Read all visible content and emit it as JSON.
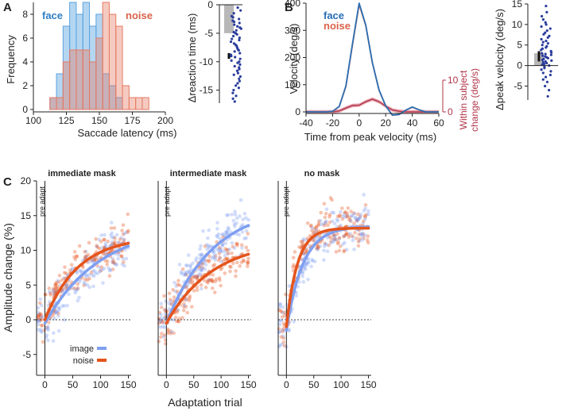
{
  "panel_labels": {
    "A": "A",
    "B": "B",
    "C": "C"
  },
  "chart_data": [
    {
      "id": "histogram",
      "type": "bar",
      "xlabel": "Saccade latency (ms)",
      "ylabel": "Frequency",
      "xlim": [
        100,
        200
      ],
      "ylim": [
        0,
        9
      ],
      "xticks": [
        100,
        125,
        150,
        175,
        200
      ],
      "yticks": [
        0,
        2,
        4,
        6,
        8
      ],
      "bin_width": 5,
      "series": [
        {
          "name": "face",
          "color": "#5aa3e0",
          "bins": [
            {
              "x": 115,
              "v": 1
            },
            {
              "x": 120,
              "v": 3
            },
            {
              "x": 125,
              "v": 7
            },
            {
              "x": 130,
              "v": 9
            },
            {
              "x": 135,
              "v": 8
            },
            {
              "x": 140,
              "v": 9
            },
            {
              "x": 145,
              "v": 7
            },
            {
              "x": 150,
              "v": 8
            },
            {
              "x": 155,
              "v": 3
            },
            {
              "x": 160,
              "v": 2
            },
            {
              "x": 165,
              "v": 1
            }
          ]
        },
        {
          "name": "noise",
          "color": "#e77b63",
          "bins": [
            {
              "x": 115,
              "v": 1
            },
            {
              "x": 120,
              "v": 1
            },
            {
              "x": 125,
              "v": 4
            },
            {
              "x": 130,
              "v": 5
            },
            {
              "x": 135,
              "v": 5
            },
            {
              "x": 140,
              "v": 5
            },
            {
              "x": 145,
              "v": 4
            },
            {
              "x": 150,
              "v": 6
            },
            {
              "x": 155,
              "v": 9
            },
            {
              "x": 160,
              "v": 8
            },
            {
              "x": 165,
              "v": 7
            },
            {
              "x": 170,
              "v": 2
            },
            {
              "x": 175,
              "v": 1
            },
            {
              "x": 180,
              "v": 1
            },
            {
              "x": 185,
              "v": 1
            }
          ]
        }
      ]
    },
    {
      "id": "reaction-time-dots",
      "type": "scatter",
      "ylabel": "Δreaction time (ms)",
      "ylim": [
        -17,
        0
      ],
      "yticks": [
        0,
        -5,
        -10,
        -15
      ],
      "bar_mean": -5,
      "error_bar": [
        -9.5,
        -8.5
      ],
      "values": [
        -0.5,
        -1,
        -1.5,
        -2,
        -2.2,
        -2.5,
        -2.8,
        -3,
        -3.2,
        -3.5,
        -3.8,
        -4,
        -4.2,
        -4.5,
        -4.8,
        -5,
        -5,
        -5.2,
        -5.5,
        -5.8,
        -6,
        -6.2,
        -6.5,
        -6.8,
        -7,
        -7.2,
        -7.5,
        -7.8,
        -8,
        -8.2,
        -8.5,
        -8.8,
        -9,
        -9.2,
        -9.5,
        -9.8,
        -10,
        -10.2,
        -10.5,
        -10.8,
        -11,
        -11.3,
        -11.6,
        -12,
        -12.3,
        -12.6,
        -13,
        -13.4,
        -13.8,
        -14.2,
        -14.6,
        -15,
        -15.5,
        -16,
        -16.5,
        -17
      ]
    },
    {
      "id": "velocity-profile",
      "type": "line",
      "xlabel": "Time from peak velocity (ms)",
      "ylabel": "Velocity (deg/s)",
      "y2label_line1": "Within subject",
      "y2label_line2": "change (deg/s)",
      "xlim": [
        -40,
        60
      ],
      "ylim": [
        0,
        400
      ],
      "y2lim": [
        0,
        10
      ],
      "xticks": [
        -40,
        -20,
        0,
        20,
        40,
        60
      ],
      "yticks": [
        0,
        100,
        200,
        300,
        400
      ],
      "y2ticks": [
        0,
        10
      ],
      "x": [
        -40,
        -35,
        -30,
        -25,
        -20,
        -15,
        -10,
        -5,
        0,
        5,
        10,
        15,
        20,
        25,
        30,
        35,
        40,
        45,
        50,
        55,
        60
      ],
      "series": [
        {
          "name": "face",
          "color": "#2a6eb5",
          "values": [
            0,
            0,
            0,
            0,
            2,
            20,
            95,
            250,
            400,
            320,
            180,
            80,
            22,
            -12,
            -10,
            6,
            18,
            8,
            0,
            0,
            0
          ]
        },
        {
          "name": "noise",
          "color": "#e0714f",
          "values": [
            0,
            0,
            0,
            0,
            2,
            20,
            93,
            246,
            395,
            318,
            180,
            80,
            22,
            -12,
            -10,
            6,
            17,
            8,
            0,
            0,
            0
          ]
        },
        {
          "name": "within subject change",
          "color": "#b0364a",
          "axis": "y2",
          "values": [
            0,
            0,
            0,
            0,
            0,
            0.3,
            1.2,
            2,
            2.1,
            3.2,
            4,
            3.2,
            1.8,
            0.6,
            0.2,
            0,
            0,
            0,
            0,
            0,
            0
          ]
        }
      ]
    },
    {
      "id": "peak-velocity-dots",
      "type": "scatter",
      "ylabel": "Δpeak velocity (deg/s)",
      "ylim": [
        -8,
        15
      ],
      "yticks": [
        -5,
        0,
        5,
        10,
        15
      ],
      "bar_mean": 3,
      "error_bar": [
        1,
        3.5
      ],
      "values": [
        14.5,
        13,
        12,
        11.2,
        10.5,
        10,
        9.5,
        9,
        8.5,
        8,
        7.6,
        7.2,
        6.8,
        6.4,
        6,
        5.7,
        5.4,
        5,
        4.7,
        4.4,
        4.1,
        3.8,
        3.5,
        3.2,
        3,
        2.8,
        2.6,
        2.4,
        2.2,
        2,
        1.8,
        1.6,
        1.4,
        1.2,
        1,
        0.8,
        0.6,
        0.4,
        0.2,
        0,
        -0.3,
        -0.6,
        -1,
        -1.4,
        -1.8,
        -2.3,
        -2.8,
        -3.4,
        -4,
        -5,
        -6,
        -7.5
      ]
    },
    {
      "id": "adaptation-curves",
      "type": "scatter",
      "ylabel": "Amplitude change (%)",
      "xlabel": "Adaptation trial",
      "pre_adapt_label": "pre adapt",
      "xlim": [
        -15,
        155
      ],
      "ylim": [
        -8,
        20
      ],
      "xticks": [
        0,
        50,
        100,
        150
      ],
      "yticks": [
        -5,
        0,
        5,
        10,
        15,
        20
      ],
      "legend": [
        {
          "name": "image",
          "color": "#7f9ff0"
        },
        {
          "name": "noise",
          "color": "#e4541c"
        }
      ],
      "panels": [
        {
          "title": "immediate mask",
          "fits": [
            {
              "name": "image",
              "color": "#7f9ff0",
              "asymptote": 13.8,
              "tau": 100,
              "offset": -0.5
            },
            {
              "name": "noise",
              "color": "#e4541c",
              "asymptote": 12.0,
              "tau": 60,
              "offset": 0
            }
          ]
        },
        {
          "title": "intermediate mask",
          "fits": [
            {
              "name": "image",
              "color": "#7f9ff0",
              "asymptote": 16.5,
              "tau": 85,
              "offset": -0.5
            },
            {
              "name": "noise",
              "color": "#e4541c",
              "asymptote": 11.5,
              "tau": 85,
              "offset": -0.5
            }
          ]
        },
        {
          "title": "no mask",
          "fits": [
            {
              "name": "image",
              "color": "#7f9ff0",
              "asymptote": 13.5,
              "tau": 30,
              "offset": -1.5
            },
            {
              "name": "noise",
              "color": "#e4541c",
              "asymptote": 13.2,
              "tau": 20,
              "offset": -1.0
            }
          ]
        }
      ]
    }
  ]
}
